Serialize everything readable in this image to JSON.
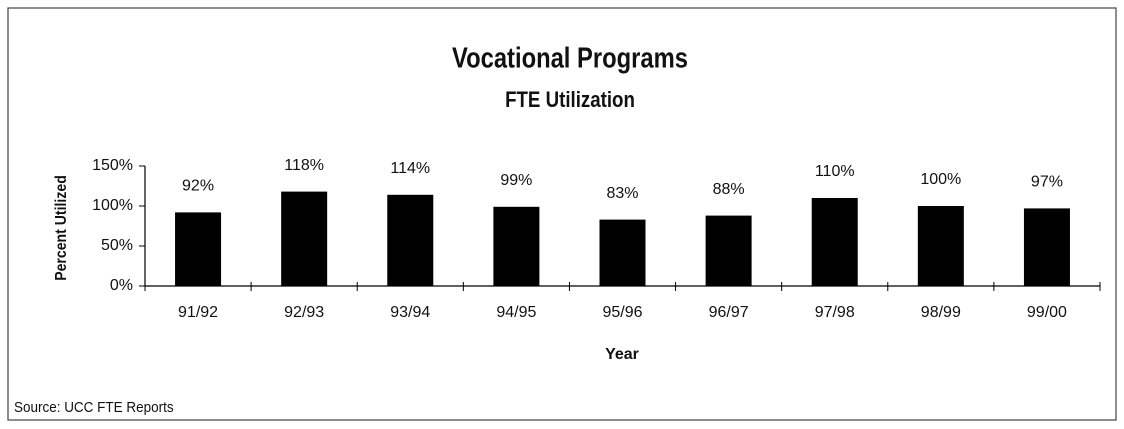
{
  "chart_data": {
    "type": "bar",
    "title": "Vocational Programs",
    "subtitle": "FTE Utilization",
    "x_label": "Year",
    "y_label": "Percent Utilized",
    "source": "Source: UCC FTE Reports",
    "categories": [
      "91/92",
      "92/93",
      "93/94",
      "94/95",
      "95/96",
      "96/97",
      "97/98",
      "98/99",
      "99/00"
    ],
    "values": [
      92,
      118,
      114,
      99,
      83,
      88,
      110,
      100,
      97
    ],
    "value_labels": [
      "92%",
      "118%",
      "114%",
      "99%",
      "83%",
      "88%",
      "110%",
      "100%",
      "97%"
    ],
    "color": "#000000",
    "ylim": [
      0,
      150
    ],
    "yticks": [
      {
        "value": 0,
        "label": "0%"
      },
      {
        "value": 50,
        "label": "50%"
      },
      {
        "value": 100,
        "label": "100%"
      },
      {
        "value": 150,
        "label": "150%"
      }
    ],
    "grid": false
  }
}
